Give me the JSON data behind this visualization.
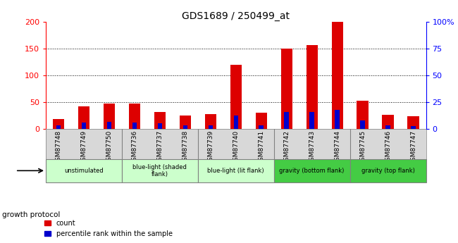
{
  "title": "GDS1689 / 250499_at",
  "samples": [
    "GSM87748",
    "GSM87749",
    "GSM87750",
    "GSM87736",
    "GSM87737",
    "GSM87738",
    "GSM87739",
    "GSM87740",
    "GSM87741",
    "GSM87742",
    "GSM87743",
    "GSM87744",
    "GSM87745",
    "GSM87746",
    "GSM87747"
  ],
  "count_values": [
    18,
    42,
    47,
    47,
    32,
    25,
    27,
    120,
    30,
    150,
    157,
    200,
    52,
    26,
    24
  ],
  "percentile_values": [
    6,
    12,
    13,
    12,
    10,
    6,
    6,
    25,
    6,
    31,
    31,
    35,
    16,
    6,
    5
  ],
  "groups": [
    {
      "label": "unstimulated",
      "start": 0,
      "end": 3,
      "color": "#ccffcc"
    },
    {
      "label": "blue-light (shaded\nflank)",
      "start": 3,
      "end": 6,
      "color": "#ccffcc"
    },
    {
      "label": "blue-light (lit flank)",
      "start": 6,
      "end": 9,
      "color": "#ccffcc"
    },
    {
      "label": "gravity (bottom flank)",
      "start": 9,
      "end": 12,
      "color": "#44cc44"
    },
    {
      "label": "gravity (top flank)",
      "start": 12,
      "end": 15,
      "color": "#44cc44"
    }
  ],
  "ylim_left": [
    0,
    200
  ],
  "ylim_right": [
    0,
    100
  ],
  "yticks_left": [
    0,
    50,
    100,
    150,
    200
  ],
  "yticks_right": [
    0,
    25,
    50,
    75,
    100
  ],
  "ytick_labels_right": [
    "0",
    "25",
    "50",
    "75",
    "100%"
  ],
  "bar_color_count": "#dd0000",
  "bar_color_pct": "#0000cc",
  "background_color": "#ffffff",
  "xtick_bg": "#d8d8d8",
  "group_colors": [
    "#ccffcc",
    "#ccffcc",
    "#ccffcc",
    "#44cc44",
    "#44cc44"
  ],
  "growth_protocol_label": "growth protocol",
  "legend_count_label": "count",
  "legend_pct_label": "percentile rank within the sample"
}
